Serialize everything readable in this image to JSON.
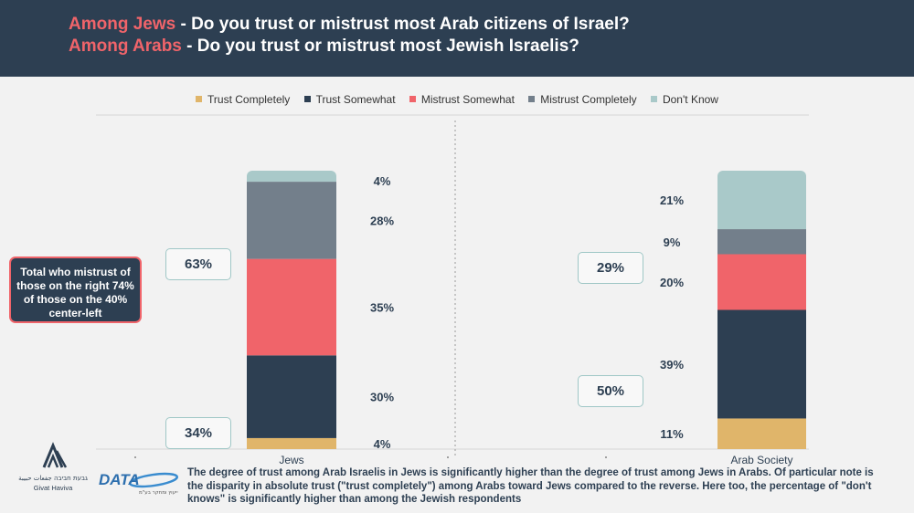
{
  "header": {
    "line1_accent": "Among Jews",
    "line1_rest": " - Do you trust or mistrust most Arab citizens of Israel?",
    "line2_accent": "Among Arabs",
    "line2_rest": " - Do you trust or mistrust most Jewish Israelis?"
  },
  "legend": [
    {
      "label": "Trust Completely",
      "color": "#e0b56a"
    },
    {
      "label": "Trust Somewhat",
      "color": "#2d3f52"
    },
    {
      "label": "Mistrust Somewhat",
      "color": "#f0646a"
    },
    {
      "label": "Mistrust Completely",
      "color": "#737f8b"
    },
    {
      "label": "Don't Know",
      "color": "#a9c9c9"
    }
  ],
  "chart_data": {
    "type": "bar",
    "stacked": true,
    "categories": [
      "Jews",
      "Arab Society"
    ],
    "series": [
      {
        "name": "Trust Completely",
        "values": [
          4,
          11
        ],
        "labels": [
          "4%",
          "11%"
        ],
        "color": "#e0b56a"
      },
      {
        "name": "Trust Somewhat",
        "values": [
          30,
          39
        ],
        "labels": [
          "30%",
          "39%"
        ],
        "color": "#2d3f52"
      },
      {
        "name": "Mistrust Somewhat",
        "values": [
          35,
          20
        ],
        "labels": [
          "35%",
          "20%"
        ],
        "color": "#f0646a"
      },
      {
        "name": "Mistrust Completely",
        "values": [
          28,
          9
        ],
        "labels": [
          "28%",
          "9%"
        ],
        "color": "#737f8b"
      },
      {
        "name": "Don't Know",
        "values": [
          4,
          21
        ],
        "labels": [
          "4%",
          "21%"
        ],
        "color": "#a9c9c9"
      }
    ],
    "legend_position": "top",
    "annotations": {
      "jews_mistrust_total": "63%",
      "jews_trust_total": "34%",
      "arab_mistrust_total": "29%",
      "arab_trust_total": "50%"
    }
  },
  "callout": {
    "text": "Total who mistrust of those on the right 74% of those on the 40% center-left"
  },
  "footer": {
    "givat_haviva_hebrew": "גבעת חביבה جفعات حبيبة",
    "givat_haviva_en": "Givat Haviva",
    "data_logo": "DATA",
    "data_tagline": "ייעוץ ומחקר בע\"מ",
    "note": "The degree of trust among Arab Israelis in Jews is significantly higher than the degree of trust among Jews in Arabs. Of particular note is the disparity in absolute trust (\"trust completely\") among Arabs toward Jews compared to the reverse. Here too, the percentage of \"don't knows\" is significantly higher than among the Jewish respondents"
  }
}
